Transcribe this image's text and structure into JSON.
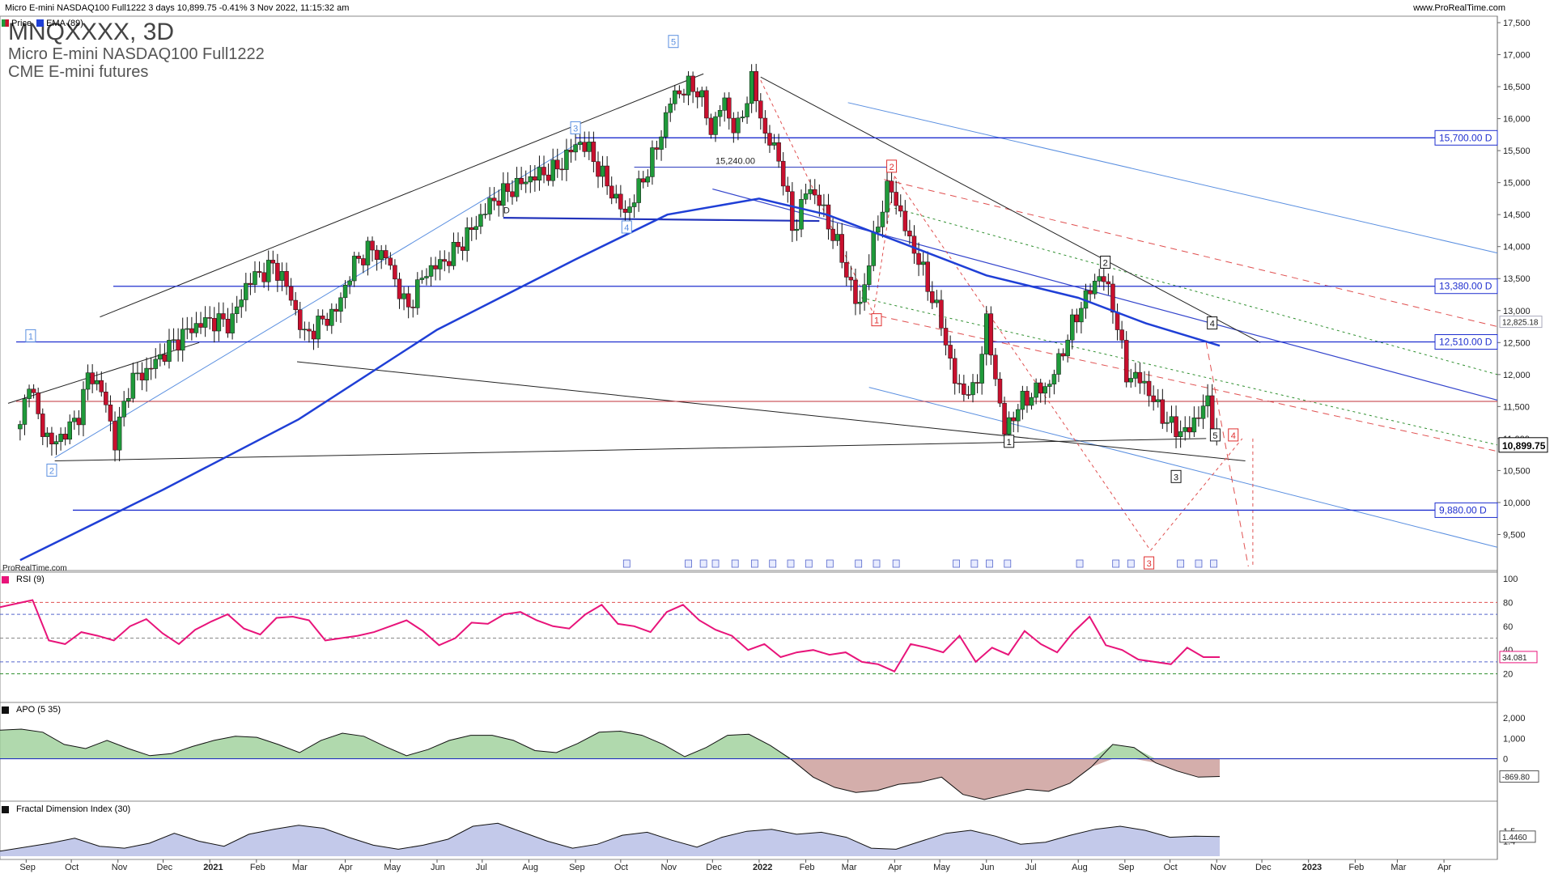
{
  "header": {
    "title": "Micro E-mini NASDAQ100 Full1222 3 days 10,899.75 -0.41% 3 Nov 2022, 11:15:32 am",
    "site": "www.ProRealTime.com"
  },
  "instrument": {
    "symbol": "MNQXXXX, 3D",
    "name": "Micro E-mini NASDAQ100 Full1222",
    "exchange": "CME E-mini futures"
  },
  "legend": {
    "price": "Price",
    "ema": "EMA (89)",
    "rsi": "RSI (9)",
    "apo": "APO (5 35)",
    "fdi": "Fractal Dimension Index (30)",
    "credit": "ProRealTime.com"
  },
  "colors": {
    "up": "#1f9a3a",
    "down": "#c8102e",
    "ema": "#1f3fd6",
    "level": "#1f2fcf",
    "rsi": "#e8147a",
    "apo_pos": "#9ccf98",
    "apo_neg": "#c99a96",
    "fdi_fill": "#b9bfe6"
  },
  "chart_data": [
    {
      "type": "candlestick",
      "title": "Micro E-mini NASDAQ100 Full1222",
      "last_price": "10,899.75",
      "ylim": [
        9000,
        17500
      ],
      "y_ticks": [
        "17,500",
        "17,000",
        "16,500",
        "16,000",
        "15,500",
        "15,000",
        "14,500",
        "14,000",
        "13,500",
        "13,000",
        "12,500",
        "12,000",
        "11,500",
        "11,000",
        "10,500",
        "10,000",
        "9,500"
      ],
      "x_ticks": [
        "Sep",
        "Oct",
        "Nov",
        "Dec",
        "2021",
        "Feb",
        "Mar",
        "Apr",
        "May",
        "Jun",
        "Jul",
        "Aug",
        "Sep",
        "Oct",
        "Nov",
        "Dec",
        "2022",
        "Feb",
        "Mar",
        "Apr",
        "May",
        "Jun",
        "Jul",
        "Aug",
        "Sep",
        "Oct",
        "Nov",
        "Dec",
        "2023",
        "Feb",
        "Mar",
        "Apr"
      ],
      "close_path": [
        [
          "2020-08-28",
          11150
        ],
        [
          "2020-09-03",
          11950
        ],
        [
          "2020-09-09",
          11300
        ],
        [
          "2020-09-18",
          10900
        ],
        [
          "2020-09-25",
          11050
        ],
        [
          "2020-10-05",
          11300
        ],
        [
          "2020-10-13",
          12050
        ],
        [
          "2020-10-22",
          11700
        ],
        [
          "2020-10-30",
          10950
        ],
        [
          "2020-11-09",
          11900
        ],
        [
          "2020-11-20",
          12050
        ],
        [
          "2020-12-04",
          12400
        ],
        [
          "2020-12-18",
          12700
        ],
        [
          "2020-12-31",
          12850
        ],
        [
          "2021-01-15",
          12800
        ],
        [
          "2021-01-26",
          13450
        ],
        [
          "2021-02-12",
          13700
        ],
        [
          "2021-02-19",
          13500
        ],
        [
          "2021-03-05",
          12600
        ],
        [
          "2021-03-15",
          12800
        ],
        [
          "2021-03-26",
          13000
        ],
        [
          "2021-04-06",
          13700
        ],
        [
          "2021-04-16",
          13950
        ],
        [
          "2021-04-28",
          13850
        ],
        [
          "2021-05-12",
          13000
        ],
        [
          "2021-05-24",
          13600
        ],
        [
          "2021-06-08",
          13800
        ],
        [
          "2021-06-22",
          14200
        ],
        [
          "2021-07-07",
          14700
        ],
        [
          "2021-07-20",
          14900
        ],
        [
          "2021-08-04",
          15100
        ],
        [
          "2021-08-19",
          15200
        ],
        [
          "2021-09-03",
          15650
        ],
        [
          "2021-09-10",
          15500
        ],
        [
          "2021-09-20",
          15050
        ],
        [
          "2021-10-04",
          14500
        ],
        [
          "2021-10-15",
          15000
        ],
        [
          "2021-10-25",
          15550
        ],
        [
          "2021-11-04",
          16350
        ],
        [
          "2021-11-15",
          16500
        ],
        [
          "2021-11-22",
          16450
        ],
        [
          "2021-11-30",
          15800
        ],
        [
          "2021-12-08",
          16300
        ],
        [
          "2021-12-17",
          15750
        ],
        [
          "2021-12-27",
          16600
        ],
        [
          "2022-01-05",
          15750
        ],
        [
          "2022-01-14",
          15400
        ],
        [
          "2022-01-24",
          14200
        ],
        [
          "2022-02-02",
          14950
        ],
        [
          "2022-02-09",
          14750
        ],
        [
          "2022-02-24",
          13900
        ],
        [
          "2022-03-08",
          13000
        ],
        [
          "2022-03-21",
          14400
        ],
        [
          "2022-03-29",
          15000
        ],
        [
          "2022-04-06",
          14400
        ],
        [
          "2022-04-20",
          13600
        ],
        [
          "2022-05-02",
          12800
        ],
        [
          "2022-05-12",
          11800
        ],
        [
          "2022-05-24",
          11700
        ],
        [
          "2022-06-01",
          12800
        ],
        [
          "2022-06-13",
          11100
        ],
        [
          "2022-06-22",
          11500
        ],
        [
          "2022-07-01",
          11700
        ],
        [
          "2022-07-13",
          11850
        ],
        [
          "2022-07-22",
          12400
        ],
        [
          "2022-08-01",
          13000
        ],
        [
          "2022-08-16",
          13600
        ],
        [
          "2022-08-24",
          13100
        ],
        [
          "2022-09-02",
          12000
        ],
        [
          "2022-09-13",
          11900
        ],
        [
          "2022-09-22",
          11500
        ],
        [
          "2022-10-03",
          11150
        ],
        [
          "2022-10-13",
          11100
        ],
        [
          "2022-10-25",
          11600
        ],
        [
          "2022-11-03",
          10899.75
        ]
      ],
      "ema": [
        [
          "2020-08-28",
          9100
        ],
        [
          "2020-12-01",
          10200
        ],
        [
          "2021-03-01",
          11300
        ],
        [
          "2021-06-01",
          12700
        ],
        [
          "2021-09-01",
          13800
        ],
        [
          "2021-11-01",
          14500
        ],
        [
          "2022-01-01",
          14750
        ],
        [
          "2022-02-15",
          14500
        ],
        [
          "2022-04-01",
          14100
        ],
        [
          "2022-06-01",
          13550
        ],
        [
          "2022-08-01",
          13200
        ],
        [
          "2022-09-15",
          12800
        ],
        [
          "2022-11-03",
          12450
        ]
      ],
      "horizontal_levels": [
        {
          "label": "15,700.00 D",
          "value": 15700
        },
        {
          "label": "13,380.00 D",
          "value": 13380
        },
        {
          "label": "12,510.00 D",
          "value": 12510
        },
        {
          "label": "9,880.00 D",
          "value": 9880
        }
      ],
      "annotations": [
        "15,240.00",
        "D",
        "12,825.18"
      ],
      "wave_labels_blue": [
        "1",
        "2",
        "3",
        "4",
        "5"
      ],
      "wave_labels_black": [
        "1",
        "2",
        "3",
        "4",
        "5"
      ],
      "wave_labels_red": [
        "1",
        "2",
        "3",
        "4"
      ]
    },
    {
      "type": "line",
      "title": "RSI (9)",
      "ylim": [
        0,
        100
      ],
      "y_ticks": [
        "100",
        "80",
        "60",
        "40",
        "20"
      ],
      "last_value": "34.081",
      "values": [
        76,
        79,
        82,
        48,
        45,
        55,
        52,
        48,
        60,
        66,
        54,
        45,
        57,
        64,
        70,
        58,
        53,
        67,
        68,
        65,
        48,
        50,
        52,
        55,
        60,
        65,
        56,
        44,
        50,
        63,
        62,
        70,
        72,
        65,
        60,
        58,
        70,
        78,
        62,
        60,
        55,
        72,
        78,
        65,
        57,
        52,
        40,
        45,
        34,
        38,
        40,
        36,
        38,
        30,
        28,
        22,
        45,
        42,
        38,
        52,
        30,
        42,
        36,
        56,
        45,
        38,
        55,
        68,
        44,
        40,
        32,
        30,
        28,
        42,
        34,
        34
      ],
      "dashed_levels": [
        80,
        70,
        50,
        30,
        20
      ]
    },
    {
      "type": "area",
      "title": "APO (5 35)",
      "ylim": [
        -2000,
        2600
      ],
      "y_ticks": [
        "2,000",
        "1,000",
        "0"
      ],
      "last_value": "-869.80",
      "values": [
        1400,
        1450,
        1300,
        700,
        500,
        900,
        500,
        150,
        250,
        600,
        900,
        1100,
        1050,
        700,
        300,
        900,
        1250,
        1100,
        600,
        150,
        450,
        900,
        1150,
        1150,
        900,
        400,
        300,
        750,
        1300,
        1350,
        1150,
        700,
        100,
        550,
        1150,
        1200,
        650,
        -50,
        -900,
        -1400,
        -1650,
        -1550,
        -1250,
        -1150,
        -900,
        -1750,
        -2000,
        -1750,
        -1500,
        -1600,
        -1200,
        -400,
        700,
        550,
        -200,
        -600,
        -900,
        -870
      ]
    },
    {
      "type": "area",
      "title": "Fractal Dimension Index (30)",
      "ylim": [
        1.25,
        1.68
      ],
      "y_ticks": [
        "1.5",
        "1.4"
      ],
      "last_value": "1.4460",
      "values": [
        1.3,
        1.34,
        1.38,
        1.43,
        1.35,
        1.33,
        1.38,
        1.48,
        1.4,
        1.35,
        1.47,
        1.52,
        1.56,
        1.53,
        1.44,
        1.36,
        1.32,
        1.36,
        1.42,
        1.55,
        1.58,
        1.49,
        1.4,
        1.33,
        1.37,
        1.46,
        1.49,
        1.41,
        1.34,
        1.44,
        1.5,
        1.52,
        1.47,
        1.49,
        1.44,
        1.33,
        1.32,
        1.4,
        1.48,
        1.51,
        1.45,
        1.37,
        1.39,
        1.46,
        1.52,
        1.55,
        1.51,
        1.44,
        1.45,
        1.446
      ]
    }
  ]
}
